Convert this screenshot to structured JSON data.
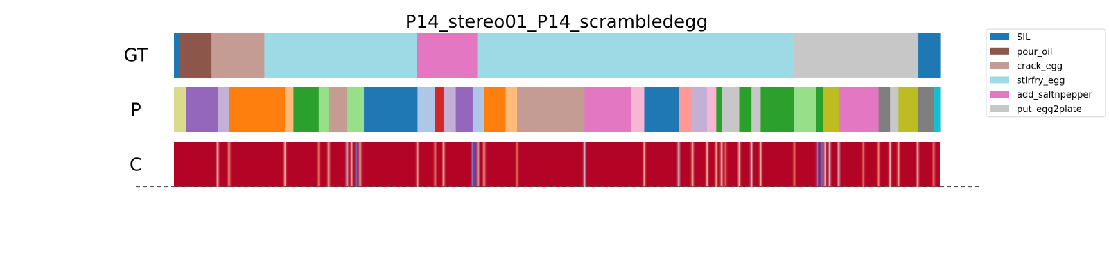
{
  "chart_data": {
    "type": "segmentation",
    "title": "P14_stereo01_P14_scrambledegg",
    "rows": [
      {
        "label": "GT",
        "segments": [
          {
            "start": 0.0,
            "end": 0.008,
            "color": "#1f77b4"
          },
          {
            "start": 0.008,
            "end": 0.049,
            "color": "#8c564b"
          },
          {
            "start": 0.049,
            "end": 0.118,
            "color": "#c49c94"
          },
          {
            "start": 0.118,
            "end": 0.317,
            "color": "#9edae5"
          },
          {
            "start": 0.317,
            "end": 0.396,
            "color": "#e377c2"
          },
          {
            "start": 0.396,
            "end": 0.809,
            "color": "#9edae5"
          },
          {
            "start": 0.809,
            "end": 0.972,
            "color": "#c7c7c7"
          },
          {
            "start": 0.972,
            "end": 1.0,
            "color": "#1f77b4"
          }
        ]
      },
      {
        "label": "P",
        "segments": [
          {
            "start": 0.0,
            "end": 0.016,
            "color": "#dbdb8d"
          },
          {
            "start": 0.016,
            "end": 0.057,
            "color": "#9467bd"
          },
          {
            "start": 0.057,
            "end": 0.072,
            "color": "#c5b0d5"
          },
          {
            "start": 0.072,
            "end": 0.145,
            "color": "#ff7f0e"
          },
          {
            "start": 0.145,
            "end": 0.156,
            "color": "#ffbb78"
          },
          {
            "start": 0.156,
            "end": 0.189,
            "color": "#2ca02c"
          },
          {
            "start": 0.189,
            "end": 0.202,
            "color": "#98df8a"
          },
          {
            "start": 0.202,
            "end": 0.226,
            "color": "#c49c94"
          },
          {
            "start": 0.226,
            "end": 0.248,
            "color": "#98df8a"
          },
          {
            "start": 0.248,
            "end": 0.318,
            "color": "#1f77b4"
          },
          {
            "start": 0.318,
            "end": 0.341,
            "color": "#aec7e8"
          },
          {
            "start": 0.341,
            "end": 0.352,
            "color": "#d62728"
          },
          {
            "start": 0.352,
            "end": 0.368,
            "color": "#c5b0d5"
          },
          {
            "start": 0.368,
            "end": 0.39,
            "color": "#9467bd"
          },
          {
            "start": 0.39,
            "end": 0.405,
            "color": "#aec7e8"
          },
          {
            "start": 0.405,
            "end": 0.433,
            "color": "#ff7f0e"
          },
          {
            "start": 0.433,
            "end": 0.448,
            "color": "#ffbb78"
          },
          {
            "start": 0.448,
            "end": 0.536,
            "color": "#c49c94"
          },
          {
            "start": 0.536,
            "end": 0.597,
            "color": "#e377c2"
          },
          {
            "start": 0.597,
            "end": 0.614,
            "color": "#f7b6d2"
          },
          {
            "start": 0.614,
            "end": 0.659,
            "color": "#1f77b4"
          },
          {
            "start": 0.659,
            "end": 0.677,
            "color": "#ff9896"
          },
          {
            "start": 0.677,
            "end": 0.696,
            "color": "#c5b0d5"
          },
          {
            "start": 0.696,
            "end": 0.708,
            "color": "#f7b6d2"
          },
          {
            "start": 0.708,
            "end": 0.715,
            "color": "#2ca02c"
          },
          {
            "start": 0.715,
            "end": 0.738,
            "color": "#c7c7c7"
          },
          {
            "start": 0.738,
            "end": 0.754,
            "color": "#2ca02c"
          },
          {
            "start": 0.754,
            "end": 0.766,
            "color": "#c7c7c7"
          },
          {
            "start": 0.766,
            "end": 0.81,
            "color": "#2ca02c"
          },
          {
            "start": 0.81,
            "end": 0.838,
            "color": "#98df8a"
          },
          {
            "start": 0.838,
            "end": 0.848,
            "color": "#2ca02c"
          },
          {
            "start": 0.848,
            "end": 0.868,
            "color": "#bcbd22"
          },
          {
            "start": 0.868,
            "end": 0.92,
            "color": "#e377c2"
          },
          {
            "start": 0.92,
            "end": 0.935,
            "color": "#7f7f7f"
          },
          {
            "start": 0.935,
            "end": 0.946,
            "color": "#c7c7c7"
          },
          {
            "start": 0.946,
            "end": 0.971,
            "color": "#bcbd22"
          },
          {
            "start": 0.971,
            "end": 0.992,
            "color": "#7f7f7f"
          },
          {
            "start": 0.992,
            "end": 1.0,
            "color": "#17becf"
          }
        ]
      }
    ],
    "confidence": {
      "label": "C",
      "base_color": "#b40426",
      "dips": [
        {
          "pos": 0.057,
          "color": "#f7c9b5"
        },
        {
          "pos": 0.072,
          "color": "#f4b79d"
        },
        {
          "pos": 0.145,
          "color": "#f6bda3"
        },
        {
          "pos": 0.189,
          "color": "#e8765c"
        },
        {
          "pos": 0.202,
          "color": "#f5c1a9"
        },
        {
          "pos": 0.226,
          "color": "#cfdaea"
        },
        {
          "pos": 0.232,
          "color": "#f7b89c"
        },
        {
          "pos": 0.238,
          "color": "#5e7de7"
        },
        {
          "pos": 0.243,
          "color": "#e9d5cb"
        },
        {
          "pos": 0.318,
          "color": "#f1b79d"
        },
        {
          "pos": 0.341,
          "color": "#ec8c6d"
        },
        {
          "pos": 0.352,
          "color": "#f4c4ab"
        },
        {
          "pos": 0.39,
          "color": "#7597f6"
        },
        {
          "pos": 0.393,
          "color": "#4961d2"
        },
        {
          "pos": 0.397,
          "color": "#dcdddd"
        },
        {
          "pos": 0.405,
          "color": "#f7b89c"
        },
        {
          "pos": 0.448,
          "color": "#e67259"
        },
        {
          "pos": 0.536,
          "color": "#c5c9d4"
        },
        {
          "pos": 0.614,
          "color": "#f1b39a"
        },
        {
          "pos": 0.659,
          "color": "#d5dbe5"
        },
        {
          "pos": 0.677,
          "color": "#f6bfa6"
        },
        {
          "pos": 0.696,
          "color": "#f4c5ad"
        },
        {
          "pos": 0.708,
          "color": "#f7aa8c"
        },
        {
          "pos": 0.715,
          "color": "#efcebd"
        },
        {
          "pos": 0.72,
          "color": "#e16751"
        },
        {
          "pos": 0.738,
          "color": "#f1ccb8"
        },
        {
          "pos": 0.754,
          "color": "#d9dce1"
        },
        {
          "pos": 0.766,
          "color": "#f5c2aa"
        },
        {
          "pos": 0.81,
          "color": "#e97a5f"
        },
        {
          "pos": 0.84,
          "color": "#7ea1fa"
        },
        {
          "pos": 0.843,
          "color": "#3b4cc0"
        },
        {
          "pos": 0.846,
          "color": "#5b7ae5"
        },
        {
          "pos": 0.85,
          "color": "#f6bea4"
        },
        {
          "pos": 0.856,
          "color": "#cbd8ee"
        },
        {
          "pos": 0.868,
          "color": "#dcdddd"
        },
        {
          "pos": 0.9,
          "color": "#e67259"
        },
        {
          "pos": 0.92,
          "color": "#f08b6e"
        },
        {
          "pos": 0.935,
          "color": "#f2cbb7"
        },
        {
          "pos": 0.946,
          "color": "#f7b194"
        },
        {
          "pos": 0.971,
          "color": "#f4c6af"
        },
        {
          "pos": 0.992,
          "color": "#ee8468"
        }
      ]
    },
    "legend": [
      {
        "label": "SIL",
        "color": "#1f77b4"
      },
      {
        "label": "pour_oil",
        "color": "#8c564b"
      },
      {
        "label": "crack_egg",
        "color": "#c49c94"
      },
      {
        "label": "stirfry_egg",
        "color": "#9edae5"
      },
      {
        "label": "add_saltnpepper",
        "color": "#e377c2"
      },
      {
        "label": "put_egg2plate",
        "color": "#c7c7c7"
      }
    ],
    "legend_position": "upper-right"
  }
}
